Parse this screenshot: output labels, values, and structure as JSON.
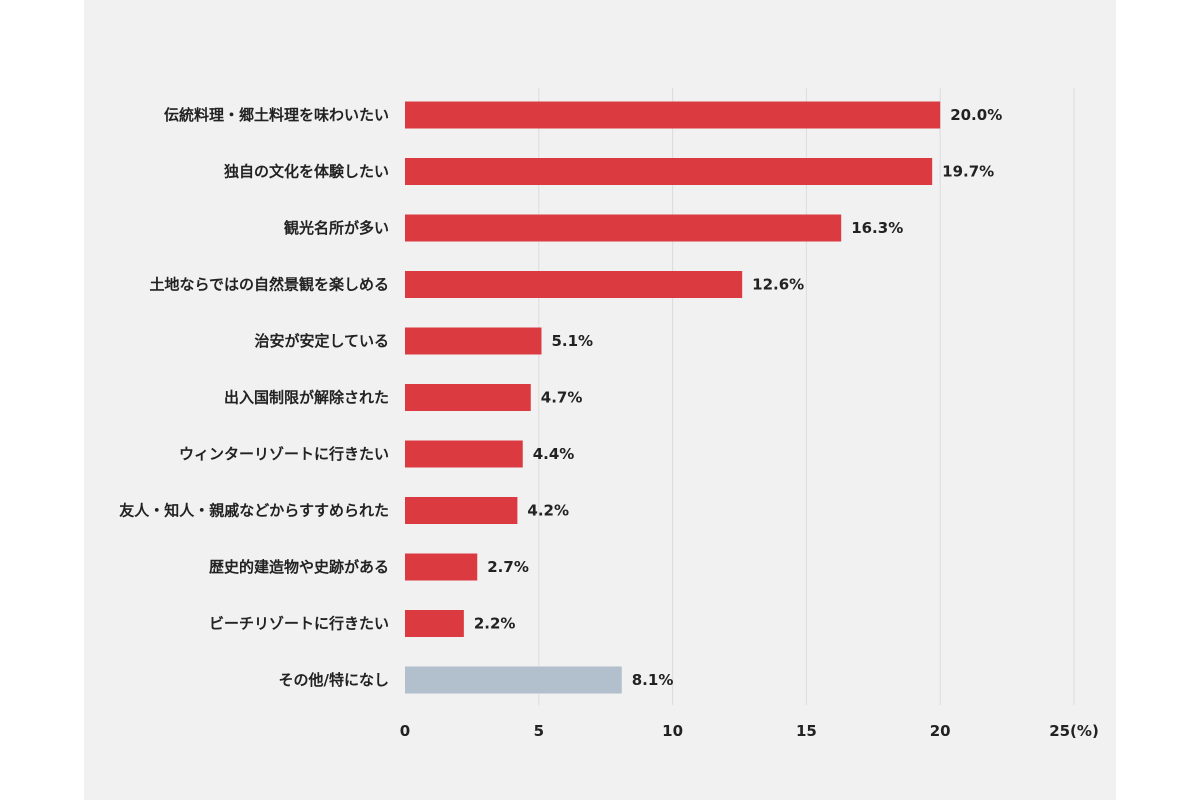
{
  "chart_data": {
    "type": "bar",
    "orientation": "horizontal",
    "categories": [
      "伝統料理・郷土料理を味わいたい",
      "独自の文化を体験したい",
      "観光名所が多い",
      "土地ならではの自然景観を楽しめる",
      "治安が安定している",
      "出入国制限が解除された",
      "ウィンターリゾートに行きたい",
      "友人・知人・親戚などからすすめられた",
      "歴史的建造物や史跡がある",
      "ビーチリゾートに行きたい",
      "その他/特になし"
    ],
    "values": [
      20.0,
      19.7,
      16.3,
      12.6,
      5.1,
      4.7,
      4.4,
      4.2,
      2.7,
      2.2,
      8.1
    ],
    "value_labels": [
      "20.0%",
      "19.7%",
      "16.3%",
      "12.6%",
      "5.1%",
      "4.7%",
      "4.4%",
      "4.2%",
      "2.7%",
      "2.2%",
      "8.1%"
    ],
    "bar_colors": [
      "#dc3a41",
      "#dc3a41",
      "#dc3a41",
      "#dc3a41",
      "#dc3a41",
      "#dc3a41",
      "#dc3a41",
      "#dc3a41",
      "#dc3a41",
      "#dc3a41",
      "#b2bfcc"
    ],
    "xticks": [
      "0",
      "5",
      "10",
      "15",
      "20",
      "25(%)"
    ],
    "xtick_values": [
      0,
      5,
      10,
      15,
      20,
      25
    ],
    "xlim": [
      0,
      25
    ],
    "grid": true
  }
}
